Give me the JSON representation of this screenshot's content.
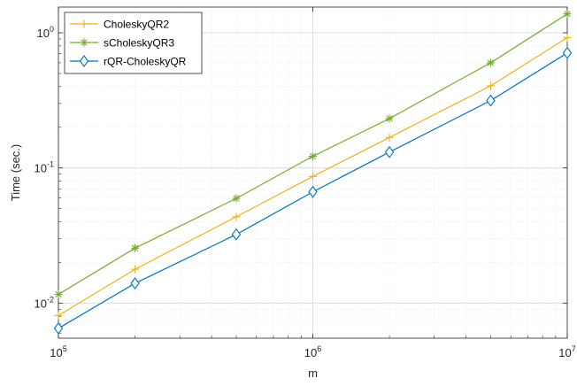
{
  "chart_data": {
    "type": "line",
    "title": "",
    "xlabel": "m",
    "ylabel": "Time (sec.)",
    "xscale": "log",
    "yscale": "log",
    "xlim": [
      100000,
      10000000
    ],
    "ylim": [
      0.0055,
      1.55
    ],
    "grid": true,
    "minor_grid": true,
    "legend_position": "top-left",
    "x": [
      100000,
      200000,
      500000,
      1000000,
      2000000,
      5000000,
      10000000
    ],
    "x_ticks": [
      {
        "value": 100000,
        "base": "10",
        "exp": "5"
      },
      {
        "value": 1000000,
        "base": "10",
        "exp": "6"
      },
      {
        "value": 10000000,
        "base": "10",
        "exp": "7"
      }
    ],
    "y_ticks": [
      {
        "value": 0.01,
        "base": "10",
        "exp": "-2"
      },
      {
        "value": 0.1,
        "base": "10",
        "exp": "-1"
      },
      {
        "value": 1,
        "base": "10",
        "exp": "0"
      }
    ],
    "series": [
      {
        "name": "CholeskyQR2",
        "color": "#EDB120",
        "marker": "plus",
        "values": [
          0.0081,
          0.0178,
          0.0435,
          0.0865,
          0.168,
          0.405,
          0.92
        ]
      },
      {
        "name": "sCholeskyQR3",
        "color": "#77AC30",
        "marker": "asterisk",
        "values": [
          0.0116,
          0.0255,
          0.0595,
          0.122,
          0.232,
          0.6,
          1.38
        ]
      },
      {
        "name": "rQR-CholeskyQR",
        "color": "#0072BD",
        "marker": "diamond",
        "values": [
          0.0065,
          0.014,
          0.0322,
          0.0665,
          0.131,
          0.315,
          0.71
        ]
      }
    ]
  }
}
